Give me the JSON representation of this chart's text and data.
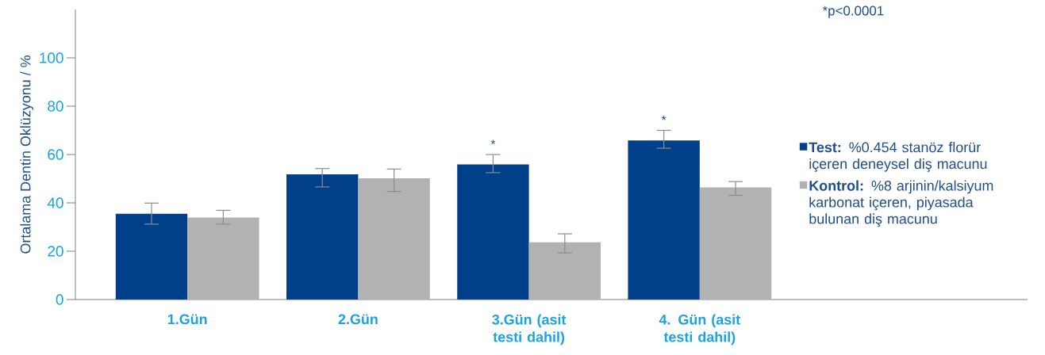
{
  "chart_data": {
    "type": "bar",
    "ylabel": "Ortalama Dentin Oklüzyonu / %",
    "categories": [
      "1.Gün",
      "2.Gün",
      "3.Gün (asit testi dahil)",
      "4. Gün (asit testi dahil)"
    ],
    "series": [
      {
        "name": "**Test:** %0.454 stanöz florür içeren deneysel diş macunu",
        "color": "#00408a",
        "values": [
          35.5,
          51.8,
          55.9,
          65.8
        ],
        "errors": [
          [
            31.2,
            39.9
          ],
          [
            46.6,
            54.2
          ],
          [
            52.5,
            60.0
          ],
          [
            62.6,
            70.0
          ]
        ]
      },
      {
        "name": "**Kontrol:** %8 arjinin/kalsiyum karbonat içeren, piyasada bulunan diş macunu",
        "color": "#b2b2b2",
        "values": [
          33.9,
          50.2,
          23.7,
          46.4
        ],
        "errors": [
          [
            31.2,
            36.9
          ],
          [
            44.7,
            54.0
          ],
          [
            19.3,
            27.2
          ],
          [
            43.1,
            48.8
          ]
        ]
      }
    ],
    "ylim": [
      0,
      120
    ],
    "yticks": [
      0,
      20,
      40,
      60,
      80,
      100
    ],
    "legend": "right",
    "annotations": [
      "*p<0.0001",
      "*",
      "*"
    ]
  }
}
